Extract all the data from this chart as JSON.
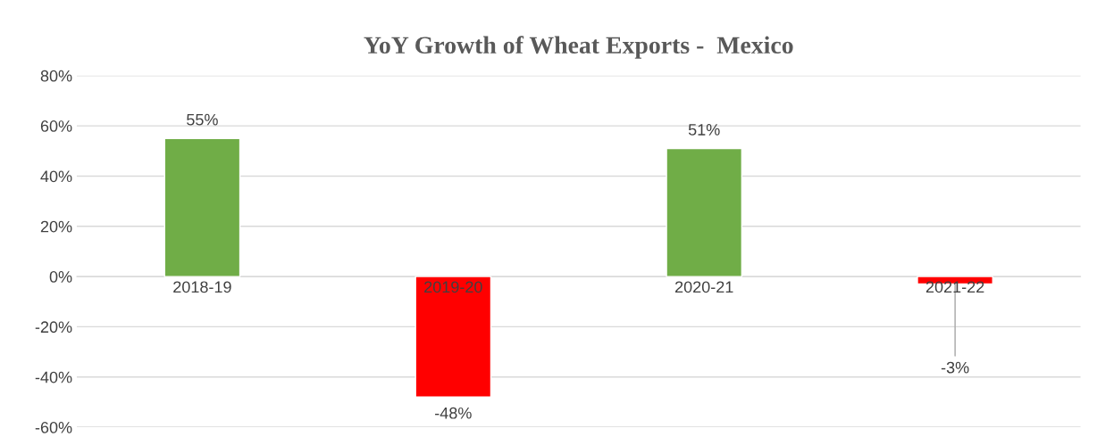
{
  "chart_data": {
    "type": "bar",
    "title": "YoY Growth of Wheat Exports -  Mexico",
    "categories": [
      "2018-19",
      "2019-20",
      "2020-21",
      "2021-22"
    ],
    "values": [
      55,
      -48,
      51,
      -3
    ],
    "colors": [
      "#70ad47",
      "#ff0000",
      "#70ad47",
      "#ff0000"
    ],
    "value_labels": [
      "55%",
      "-48%",
      "51%",
      "-3%"
    ],
    "ylim": [
      -60,
      80
    ],
    "yticks": [
      {
        "value": -60,
        "label": "-60%"
      },
      {
        "value": -40,
        "label": "-40%"
      },
      {
        "value": -20,
        "label": "-20%"
      },
      {
        "value": 0,
        "label": "0%"
      },
      {
        "value": 20,
        "label": "20%"
      },
      {
        "value": 40,
        "label": "40%"
      },
      {
        "value": 60,
        "label": "60%"
      },
      {
        "value": 80,
        "label": "80%"
      }
    ],
    "grid": "y",
    "legend": false
  }
}
